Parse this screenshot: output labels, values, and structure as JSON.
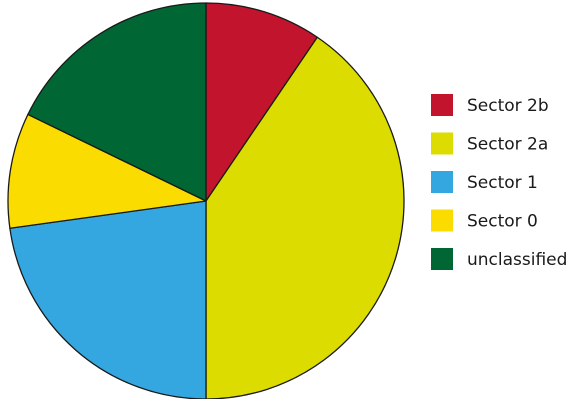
{
  "chart_data": {
    "type": "pie",
    "title": "",
    "start_angle_deg": 0,
    "direction": "clockwise",
    "legend_position": "right",
    "slices": [
      {
        "label": "Sector 2b",
        "value": 9.5,
        "color": "#c3142d"
      },
      {
        "label": "Sector 2a",
        "value": 40.5,
        "color": "#dcdc00"
      },
      {
        "label": "Sector 1",
        "value": 22.8,
        "color": "#35a7e0"
      },
      {
        "label": "Sector 0",
        "value": 9.4,
        "color": "#fbdc00"
      },
      {
        "label": "unclassified",
        "value": 17.8,
        "color": "#006633"
      }
    ]
  }
}
